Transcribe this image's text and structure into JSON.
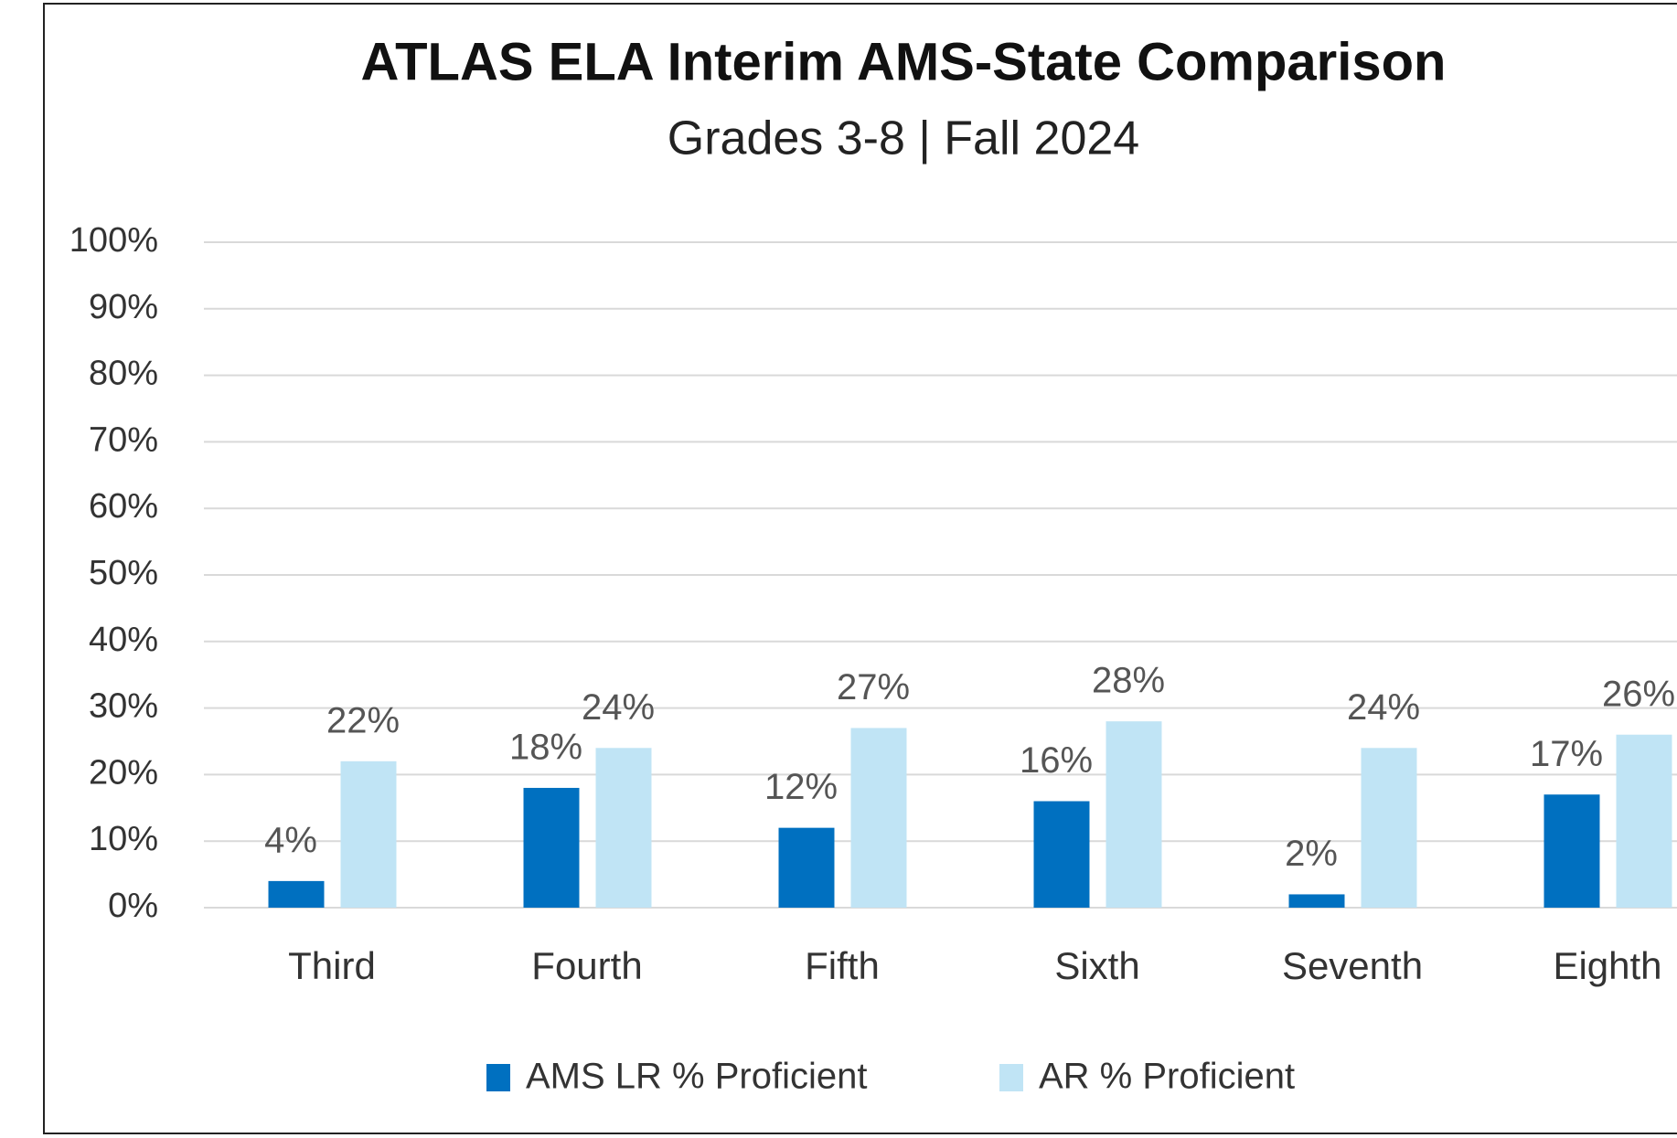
{
  "chart_data": {
    "type": "bar",
    "title": "ATLAS ELA Interim AMS-State Comparison",
    "subtitle": "Grades 3-8 | Fall 2024",
    "categories": [
      "Third",
      "Fourth",
      "Fifth",
      "Sixth",
      "Seventh",
      "Eighth"
    ],
    "series": [
      {
        "name": "AMS LR % Proficient",
        "color": "#0070c0",
        "values": [
          4,
          18,
          12,
          16,
          2,
          17
        ],
        "value_labels": [
          "4%",
          "18%",
          "12%",
          "16%",
          "2%",
          "17%"
        ]
      },
      {
        "name": "AR % Proficient",
        "color": "#c0e4f5",
        "values": [
          22,
          24,
          27,
          28,
          24,
          26
        ],
        "value_labels": [
          "22%",
          "24%",
          "27%",
          "28%",
          "24%",
          "26%"
        ]
      }
    ],
    "ylim": [
      0,
      100
    ],
    "yticks": [
      {
        "value": 0,
        "label": "0%"
      },
      {
        "value": 10,
        "label": "10%"
      },
      {
        "value": 20,
        "label": "20%"
      },
      {
        "value": 30,
        "label": "30%"
      },
      {
        "value": 40,
        "label": "40%"
      },
      {
        "value": 50,
        "label": "50%"
      },
      {
        "value": 60,
        "label": "60%"
      },
      {
        "value": 70,
        "label": "70%"
      },
      {
        "value": 80,
        "label": "80%"
      },
      {
        "value": 90,
        "label": "90%"
      },
      {
        "value": 100,
        "label": "100%"
      }
    ],
    "grid": true,
    "legend": "bottom"
  }
}
